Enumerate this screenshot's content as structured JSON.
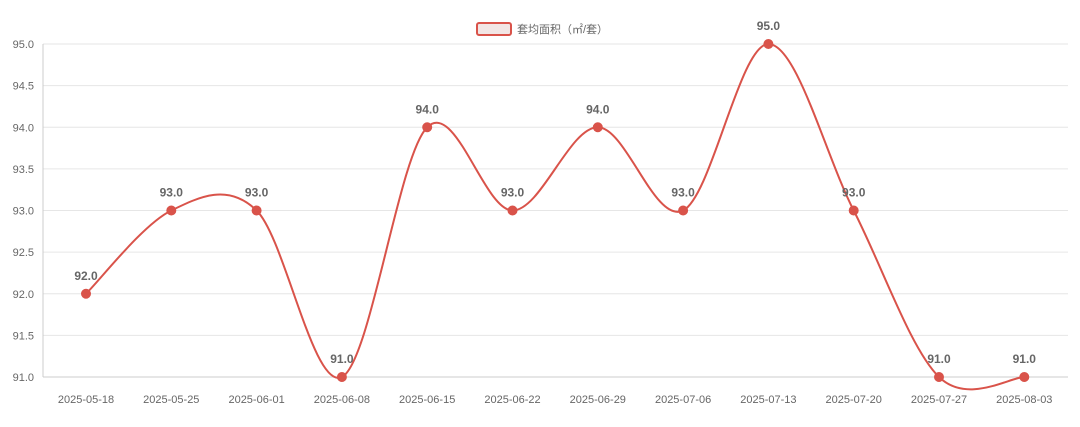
{
  "chart_data": {
    "type": "line",
    "categories": [
      "2025-05-18",
      "2025-05-25",
      "2025-06-01",
      "2025-06-08",
      "2025-06-15",
      "2025-06-22",
      "2025-06-29",
      "2025-07-06",
      "2025-07-13",
      "2025-07-20",
      "2025-07-27",
      "2025-08-03"
    ],
    "series": [
      {
        "name": "套均面积（㎡/套）",
        "values": [
          92.0,
          93.0,
          93.0,
          91.0,
          94.0,
          93.0,
          94.0,
          93.0,
          95.0,
          93.0,
          91.0,
          91.0
        ],
        "labels": [
          "92.0",
          "93.0",
          "93.0",
          "91.0",
          "94.0",
          "93.0",
          "94.0",
          "93.0",
          "95.0",
          "93.0",
          "91.0",
          "91.0"
        ],
        "color": "#d9534a",
        "smooth": true
      }
    ],
    "ylim": [
      91.0,
      95.0
    ],
    "yticks": [
      "91.0",
      "91.5",
      "92.0",
      "92.5",
      "93.0",
      "93.5",
      "94.0",
      "94.5",
      "95.0"
    ],
    "grid": true,
    "legend_position": "top-center",
    "title": "",
    "xlabel": "",
    "ylabel": ""
  },
  "legend": {
    "label": "套均面积（㎡/套）"
  }
}
